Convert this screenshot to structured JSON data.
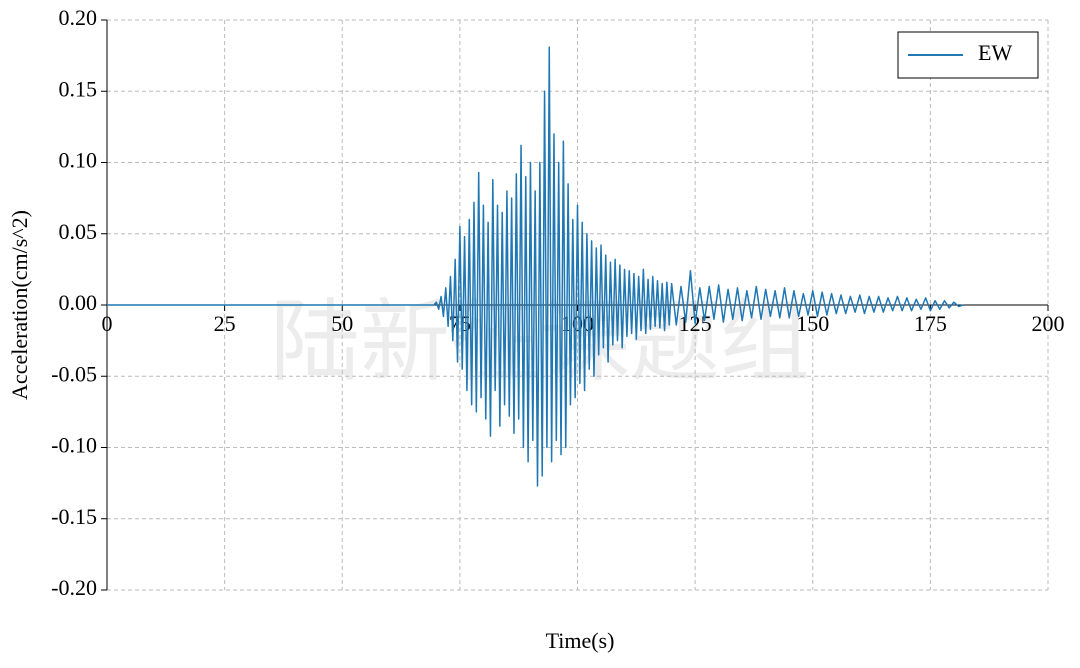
{
  "chart_data": {
    "type": "line",
    "x_label": "Time(s)",
    "y_label": "Acceleration(cm/s^2)",
    "watermark": "陆新征课题组",
    "x": [
      0,
      69.5,
      70,
      70.5,
      71,
      71.5,
      72,
      72.5,
      73,
      73.5,
      74,
      74.5,
      75,
      75.5,
      76,
      76.5,
      77,
      77.5,
      78,
      78.5,
      79,
      79.5,
      80,
      80.5,
      81,
      81.5,
      82,
      82.5,
      83,
      83.5,
      84,
      84.5,
      85,
      85.5,
      86,
      86.5,
      87,
      87.5,
      88,
      88.5,
      89,
      89.5,
      90,
      90.5,
      91,
      91.5,
      92,
      92.5,
      93,
      93.5,
      94,
      94.5,
      95,
      95.5,
      96,
      96.5,
      97,
      97.5,
      98,
      98.5,
      99,
      99.5,
      100,
      100.5,
      101,
      101.5,
      102,
      102.5,
      103,
      103.5,
      104,
      104.5,
      105,
      105.5,
      106,
      106.5,
      107,
      107.5,
      108,
      108.5,
      109,
      109.5,
      110,
      110.5,
      111,
      111.5,
      112,
      112.5,
      113,
      113.5,
      114,
      114.5,
      115,
      115.5,
      116,
      116.5,
      117,
      117.5,
      118,
      118.5,
      119,
      119.5,
      120,
      121,
      122,
      123,
      124,
      125,
      126,
      127,
      128,
      129,
      130,
      131,
      132,
      133,
      134,
      135,
      136,
      137,
      138,
      139,
      140,
      141,
      142,
      143,
      144,
      145,
      146,
      147,
      148,
      149,
      150,
      151,
      152,
      153,
      154,
      155,
      156,
      157,
      158,
      159,
      160,
      161,
      162,
      163,
      164,
      165,
      166,
      167,
      168,
      169,
      170,
      171,
      172,
      173,
      174,
      175,
      176,
      177,
      178,
      179,
      180,
      181,
      182
    ],
    "series": [
      {
        "name": "EW",
        "color": "#1f77b4",
        "values": [
          0,
          0,
          0.002,
          -0.003,
          0.006,
          -0.008,
          0.012,
          -0.015,
          0.02,
          -0.025,
          0.032,
          -0.04,
          0.055,
          -0.045,
          0.048,
          -0.06,
          0.06,
          -0.07,
          0.072,
          -0.075,
          0.093,
          -0.065,
          0.07,
          -0.08,
          0.058,
          -0.092,
          0.088,
          -0.06,
          0.07,
          -0.085,
          0.065,
          -0.07,
          0.08,
          -0.078,
          0.075,
          -0.09,
          0.092,
          -0.08,
          0.112,
          -0.1,
          0.09,
          -0.11,
          0.1,
          -0.095,
          0.08,
          -0.127,
          0.1,
          -0.12,
          0.15,
          -0.1,
          0.181,
          -0.11,
          0.12,
          -0.095,
          0.1,
          -0.105,
          0.115,
          -0.1,
          0.085,
          -0.07,
          0.06,
          -0.065,
          0.07,
          -0.055,
          0.058,
          -0.06,
          0.05,
          -0.045,
          0.045,
          -0.05,
          0.04,
          -0.035,
          0.042,
          -0.03,
          0.035,
          -0.04,
          0.03,
          -0.028,
          0.032,
          -0.025,
          0.028,
          -0.03,
          0.025,
          -0.022,
          0.024,
          -0.02,
          0.022,
          -0.024,
          0.02,
          -0.018,
          0.025,
          -0.02,
          0.018,
          -0.017,
          0.02,
          -0.015,
          0.017,
          -0.016,
          0.015,
          -0.018,
          0.016,
          -0.014,
          0.015,
          -0.014,
          0.013,
          -0.012,
          0.024,
          -0.013,
          0.012,
          -0.011,
          0.013,
          -0.01,
          0.014,
          -0.012,
          0.011,
          -0.01,
          0.012,
          -0.011,
          0.01,
          -0.009,
          0.013,
          -0.01,
          0.011,
          -0.008,
          0.01,
          -0.009,
          0.012,
          -0.009,
          0.01,
          -0.008,
          0.008,
          -0.007,
          0.01,
          -0.008,
          0.009,
          -0.007,
          0.008,
          -0.006,
          0.007,
          -0.006,
          0.006,
          -0.005,
          0.007,
          -0.006,
          0.006,
          -0.005,
          0.006,
          -0.005,
          0.005,
          -0.004,
          0.006,
          -0.004,
          0.005,
          -0.004,
          0.004,
          -0.003,
          0.005,
          -0.004,
          0.003,
          -0.003,
          0.003,
          -0.002,
          0.002,
          -0.001,
          0
        ]
      }
    ],
    "xlim": [
      0,
      200
    ],
    "ylim": [
      -0.2,
      0.2
    ],
    "xticks": [
      0,
      25,
      50,
      75,
      100,
      125,
      150,
      175,
      200
    ],
    "yticks": [
      {
        "value": 0.2,
        "label": "0.20"
      },
      {
        "value": 0.15,
        "label": "0.15"
      },
      {
        "value": 0.1,
        "label": "0.10"
      },
      {
        "value": 0.05,
        "label": "0.05"
      },
      {
        "value": 0,
        "label": "0.00"
      },
      {
        "value": -0.05,
        "label": "-0.05"
      },
      {
        "value": -0.1,
        "label": "-0.10"
      },
      {
        "value": -0.15,
        "label": "-0.15"
      },
      {
        "value": -0.2,
        "label": "-0.20"
      }
    ],
    "grid": true,
    "legend": "upper right"
  }
}
